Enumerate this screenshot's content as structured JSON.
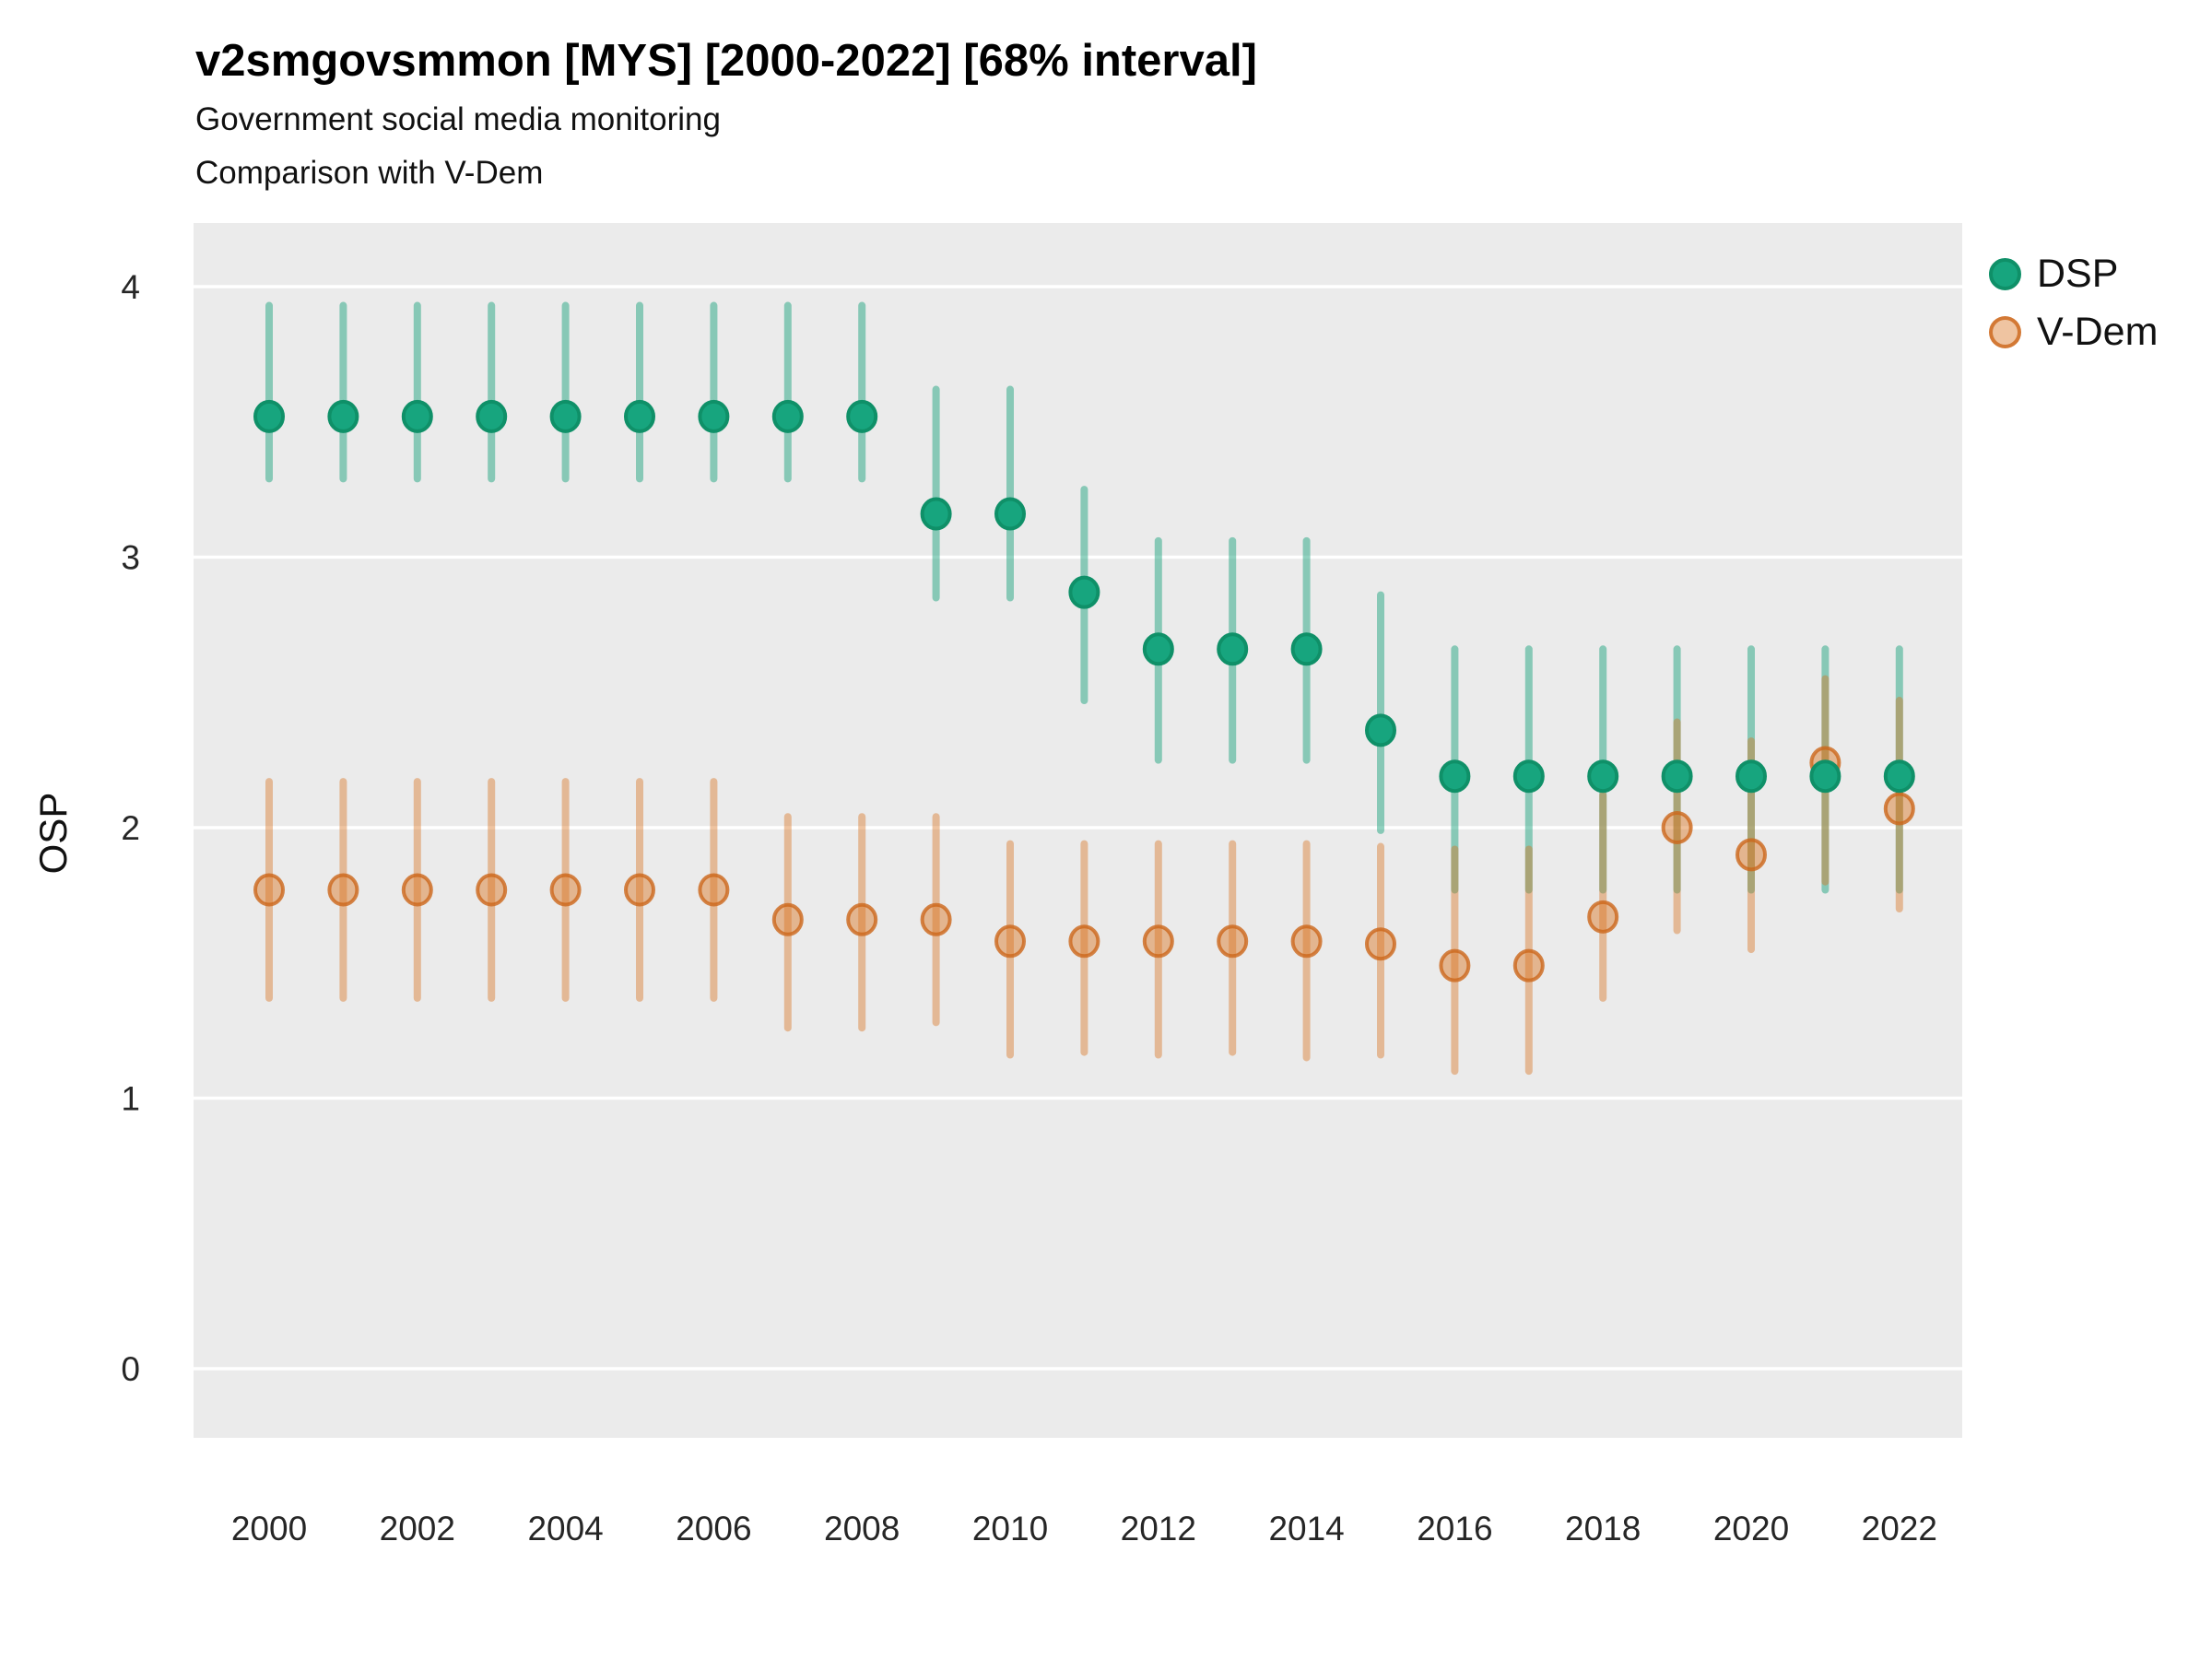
{
  "title": "v2smgovsmmon [MYS] [2000-2022] [68% interval]",
  "subtitle1": "Government social media monitoring",
  "subtitle2": "Comparison with V-Dem",
  "y_axis_label": "OSP",
  "legend": {
    "items": [
      {
        "label": "DSP"
      },
      {
        "label": "V-Dem"
      }
    ]
  },
  "colors": {
    "panel_bg": "#EBEBEB",
    "gridline": "#FFFFFF",
    "axis_text": "#262626",
    "dsp_marker_fill": "#17A57E",
    "dsp_marker_stroke": "#0F9068",
    "dsp_interval": "rgba(26,160,123,0.48)",
    "vdem_marker_fill": "rgba(217,115,30,0.45)",
    "vdem_marker_stroke": "rgba(204,102,26,0.8)",
    "vdem_interval": "rgba(217,115,30,0.42)",
    "legend_dsp_fill": "#17A57E",
    "legend_dsp_stroke": "#0F9068",
    "legend_vdem_fill": "rgba(217,115,30,0.42)",
    "legend_vdem_stroke": "rgba(204,102,26,0.8)"
  },
  "chart_data": {
    "type": "scatter",
    "title": "v2smgovsmmon [MYS] [2000-2022] [68% interval]",
    "subtitle": "Government social media monitoring; Comparison with V-Dem",
    "xlabel": "",
    "ylabel": "OSP",
    "interval_level": "68%",
    "grid": "horizontal-only",
    "legend_position": "right-top",
    "x_ticks": [
      2000,
      2002,
      2004,
      2006,
      2008,
      2010,
      2012,
      2014,
      2016,
      2018,
      2020,
      2022
    ],
    "y_ticks": [
      0,
      1,
      2,
      3,
      4
    ],
    "xlim": [
      1999,
      2023
    ],
    "ylim": [
      -0.26,
      4.23
    ],
    "series": [
      {
        "name": "DSP",
        "points": [
          {
            "year": 2000,
            "est": 3.52,
            "lo": 3.29,
            "hi": 3.93
          },
          {
            "year": 2001,
            "est": 3.52,
            "lo": 3.29,
            "hi": 3.93
          },
          {
            "year": 2002,
            "est": 3.52,
            "lo": 3.29,
            "hi": 3.93
          },
          {
            "year": 2003,
            "est": 3.52,
            "lo": 3.29,
            "hi": 3.93
          },
          {
            "year": 2004,
            "est": 3.52,
            "lo": 3.29,
            "hi": 3.93
          },
          {
            "year": 2005,
            "est": 3.52,
            "lo": 3.29,
            "hi": 3.93
          },
          {
            "year": 2006,
            "est": 3.52,
            "lo": 3.29,
            "hi": 3.93
          },
          {
            "year": 2007,
            "est": 3.52,
            "lo": 3.29,
            "hi": 3.93
          },
          {
            "year": 2008,
            "est": 3.52,
            "lo": 3.29,
            "hi": 3.93
          },
          {
            "year": 2009,
            "est": 3.16,
            "lo": 2.85,
            "hi": 3.62
          },
          {
            "year": 2010,
            "est": 3.16,
            "lo": 2.85,
            "hi": 3.62
          },
          {
            "year": 2011,
            "est": 2.87,
            "lo": 2.47,
            "hi": 3.25
          },
          {
            "year": 2012,
            "est": 2.66,
            "lo": 2.25,
            "hi": 3.06
          },
          {
            "year": 2013,
            "est": 2.66,
            "lo": 2.25,
            "hi": 3.06
          },
          {
            "year": 2014,
            "est": 2.66,
            "lo": 2.25,
            "hi": 3.06
          },
          {
            "year": 2015,
            "est": 2.36,
            "lo": 1.99,
            "hi": 2.86
          },
          {
            "year": 2016,
            "est": 2.19,
            "lo": 1.77,
            "hi": 2.66
          },
          {
            "year": 2017,
            "est": 2.19,
            "lo": 1.77,
            "hi": 2.66
          },
          {
            "year": 2018,
            "est": 2.19,
            "lo": 1.77,
            "hi": 2.66
          },
          {
            "year": 2019,
            "est": 2.19,
            "lo": 1.77,
            "hi": 2.66
          },
          {
            "year": 2020,
            "est": 2.19,
            "lo": 1.77,
            "hi": 2.66
          },
          {
            "year": 2021,
            "est": 2.19,
            "lo": 1.77,
            "hi": 2.66
          },
          {
            "year": 2022,
            "est": 2.19,
            "lo": 1.77,
            "hi": 2.66
          }
        ]
      },
      {
        "name": "V-Dem",
        "points": [
          {
            "year": 2000,
            "est": 1.77,
            "lo": 1.37,
            "hi": 2.17
          },
          {
            "year": 2001,
            "est": 1.77,
            "lo": 1.37,
            "hi": 2.17
          },
          {
            "year": 2002,
            "est": 1.77,
            "lo": 1.37,
            "hi": 2.17
          },
          {
            "year": 2003,
            "est": 1.77,
            "lo": 1.37,
            "hi": 2.17
          },
          {
            "year": 2004,
            "est": 1.77,
            "lo": 1.37,
            "hi": 2.17
          },
          {
            "year": 2005,
            "est": 1.77,
            "lo": 1.37,
            "hi": 2.17
          },
          {
            "year": 2006,
            "est": 1.77,
            "lo": 1.37,
            "hi": 2.17
          },
          {
            "year": 2007,
            "est": 1.66,
            "lo": 1.26,
            "hi": 2.04
          },
          {
            "year": 2008,
            "est": 1.66,
            "lo": 1.26,
            "hi": 2.04
          },
          {
            "year": 2009,
            "est": 1.66,
            "lo": 1.28,
            "hi": 2.04
          },
          {
            "year": 2010,
            "est": 1.58,
            "lo": 1.16,
            "hi": 1.94
          },
          {
            "year": 2011,
            "est": 1.58,
            "lo": 1.17,
            "hi": 1.94
          },
          {
            "year": 2012,
            "est": 1.58,
            "lo": 1.16,
            "hi": 1.94
          },
          {
            "year": 2013,
            "est": 1.58,
            "lo": 1.17,
            "hi": 1.94
          },
          {
            "year": 2014,
            "est": 1.58,
            "lo": 1.15,
            "hi": 1.94
          },
          {
            "year": 2015,
            "est": 1.57,
            "lo": 1.16,
            "hi": 1.93
          },
          {
            "year": 2016,
            "est": 1.49,
            "lo": 1.1,
            "hi": 1.92
          },
          {
            "year": 2017,
            "est": 1.49,
            "lo": 1.1,
            "hi": 1.92
          },
          {
            "year": 2018,
            "est": 1.67,
            "lo": 1.37,
            "hi": 2.12
          },
          {
            "year": 2019,
            "est": 2.0,
            "lo": 1.62,
            "hi": 2.39
          },
          {
            "year": 2020,
            "est": 1.9,
            "lo": 1.55,
            "hi": 2.32
          },
          {
            "year": 2021,
            "est": 2.24,
            "lo": 1.8,
            "hi": 2.55
          },
          {
            "year": 2022,
            "est": 2.07,
            "lo": 1.7,
            "hi": 2.47
          }
        ]
      }
    ]
  }
}
